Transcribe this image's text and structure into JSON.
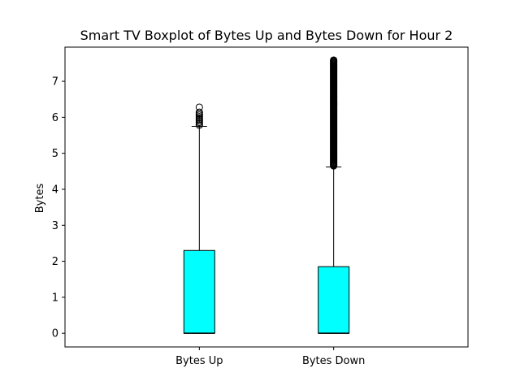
{
  "chart_data": {
    "type": "box",
    "title": "Smart TV Boxplot of Bytes Up and Bytes Down for Hour 2",
    "xlabel": "",
    "ylabel": "Bytes",
    "ylim": [
      -0.38,
      7.95
    ],
    "yticks": [
      0,
      1,
      2,
      3,
      4,
      5,
      6,
      7
    ],
    "grid": false,
    "box_color": "#00ffff",
    "edge_color": "#000000",
    "series": [
      {
        "category": "Bytes Up",
        "min": 0,
        "q1": 0,
        "median": 0,
        "q3": 2.3,
        "whisker_high": 5.75,
        "outliers": [
          5.78,
          5.82,
          5.86,
          5.9,
          5.94,
          5.98,
          6.02,
          6.06,
          6.1,
          6.14,
          6.28
        ]
      },
      {
        "category": "Bytes Down",
        "min": 0,
        "q1": 0,
        "median": 0,
        "q3": 1.85,
        "whisker_high": 4.62,
        "outliers_range": [
          4.65,
          7.6
        ]
      }
    ]
  }
}
